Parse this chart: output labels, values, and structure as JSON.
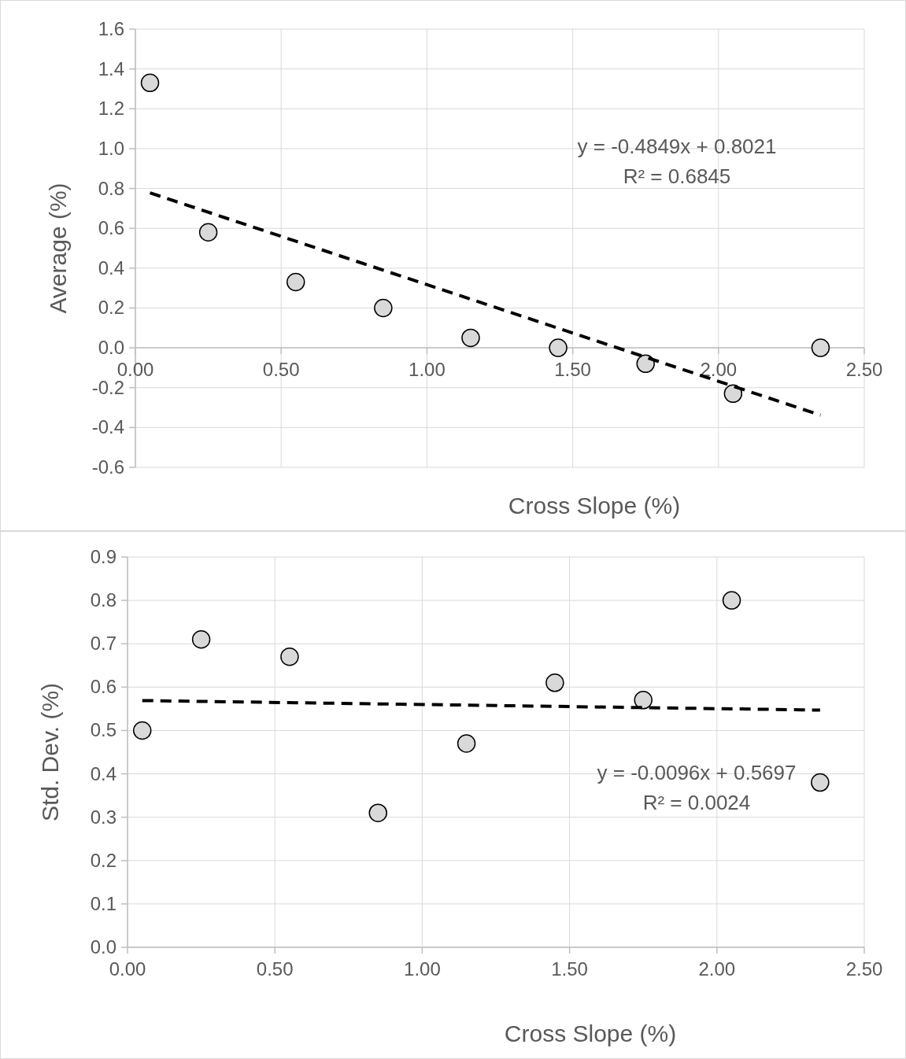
{
  "chart_data": [
    {
      "type": "scatter",
      "xlabel": "Cross Slope (%)",
      "ylabel": "Average (%)",
      "xlim": [
        0,
        2.5
      ],
      "xticks": [
        {
          "value": 0,
          "label": "0.00"
        },
        {
          "value": 0.5,
          "label": "0.50"
        },
        {
          "value": 1,
          "label": "1.00"
        },
        {
          "value": 1.5,
          "label": "1.50"
        },
        {
          "value": 2,
          "label": "2.00"
        },
        {
          "value": 2.5,
          "label": "2.50"
        }
      ],
      "ylim": [
        -0.6,
        1.6
      ],
      "yticks": [
        {
          "value": -0.6,
          "label": "-0.6"
        },
        {
          "value": -0.4,
          "label": "-0.4"
        },
        {
          "value": -0.2,
          "label": "-0.2"
        },
        {
          "value": 0,
          "label": "0.0"
        },
        {
          "value": 0.2,
          "label": "0.2"
        },
        {
          "value": 0.4,
          "label": "0.4"
        },
        {
          "value": 0.6,
          "label": "0.6"
        },
        {
          "value": 0.8,
          "label": "0.8"
        },
        {
          "value": 1,
          "label": "1.0"
        },
        {
          "value": 1.2,
          "label": "1.2"
        },
        {
          "value": 1.4,
          "label": "1.4"
        },
        {
          "value": 1.6,
          "label": "1.6"
        }
      ],
      "grid": true,
      "series": [
        {
          "color": "#d9d9d9",
          "marker": "circle",
          "x": [
            0.05,
            0.25,
            0.55,
            0.85,
            1.15,
            1.45,
            1.75,
            2.05,
            2.35
          ],
          "values": [
            1.33,
            0.58,
            0.33,
            0.2,
            0.05,
            0.0,
            -0.08,
            -0.23,
            0.0
          ]
        },
        {
          "type": "line",
          "color": "#000000",
          "line_style": "dashed",
          "x": [
            0.05,
            2.35
          ],
          "values": [
            0.778,
            -0.338
          ]
        }
      ],
      "annotations": [
        "y = -0.4849x + 0.8021",
        "R² = 0.6845"
      ]
    },
    {
      "type": "scatter",
      "xlabel": "Cross Slope (%)",
      "ylabel": "Std. Dev. (%)",
      "xlim": [
        0,
        2.5
      ],
      "xticks": [
        {
          "value": 0,
          "label": "0.00"
        },
        {
          "value": 0.5,
          "label": "0.50"
        },
        {
          "value": 1,
          "label": "1.00"
        },
        {
          "value": 1.5,
          "label": "1.50"
        },
        {
          "value": 2,
          "label": "2.00"
        },
        {
          "value": 2.5,
          "label": "2.50"
        }
      ],
      "ylim": [
        0,
        0.9
      ],
      "yticks": [
        {
          "value": 0,
          "label": "0.0"
        },
        0.1,
        0.2,
        0.3,
        0.4,
        0.5,
        0.6,
        0.7,
        0.8,
        0.9
      ],
      "grid": true,
      "series": [
        {
          "color": "#d9d9d9",
          "marker": "circle",
          "x": [
            0.05,
            0.25,
            0.55,
            0.85,
            1.15,
            1.45,
            1.75,
            2.05,
            2.35
          ],
          "values": [
            0.5,
            0.71,
            0.67,
            0.31,
            0.47,
            0.61,
            0.57,
            0.8,
            0.38
          ]
        },
        {
          "type": "line",
          "color": "#000000",
          "line_style": "dashed",
          "x": [
            0.05,
            2.35
          ],
          "values": [
            0.569,
            0.547
          ]
        }
      ],
      "annotations": [
        "y = -0.0096x + 0.5697",
        "R² = 0.0024"
      ]
    }
  ]
}
